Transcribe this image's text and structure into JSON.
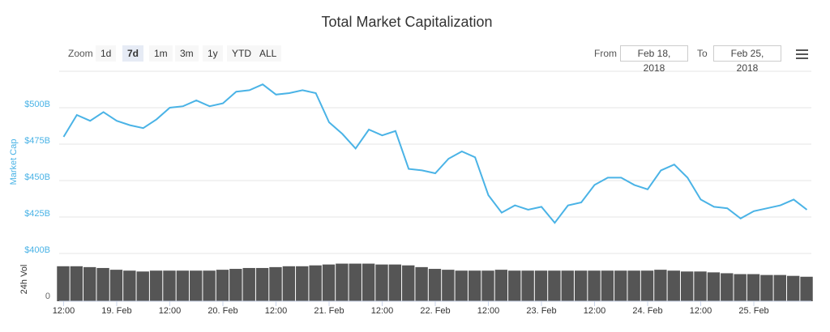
{
  "chart_data": {
    "type": "line",
    "title": "Total Market Capitalization",
    "ylabel": "Market Cap",
    "color": "#4ab3e6",
    "grid": true,
    "x": [
      12,
      15,
      18,
      21,
      24,
      27,
      30,
      33,
      36,
      39,
      42,
      45,
      48,
      51,
      54,
      57,
      60,
      63,
      66,
      69,
      72,
      75,
      78,
      81,
      84,
      87,
      90,
      93,
      96,
      99,
      102,
      105,
      108,
      111,
      114,
      117,
      120,
      123,
      126,
      129,
      132,
      135,
      138,
      141,
      144,
      147,
      150,
      153,
      156,
      159,
      162,
      165,
      168,
      171,
      174,
      177,
      180
    ],
    "values": [
      480,
      495,
      491,
      497,
      491,
      488,
      486,
      492,
      500,
      501,
      505,
      501,
      503,
      511,
      512,
      516,
      509,
      510,
      512,
      510,
      490,
      482,
      472,
      485,
      481,
      484,
      458,
      457,
      455,
      465,
      470,
      466,
      440,
      428,
      433,
      430,
      432,
      421,
      433,
      435,
      447,
      452,
      452,
      447,
      444,
      457,
      461,
      452,
      437,
      432,
      431,
      424,
      429,
      431,
      433,
      437,
      430
    ],
    "xlim": [
      11,
      181
    ],
    "xticks": [
      {
        "value": 12,
        "label": "12:00"
      },
      {
        "value": 24,
        "label": "19. Feb"
      },
      {
        "value": 36,
        "label": "12:00"
      },
      {
        "value": 48,
        "label": "20. Feb"
      },
      {
        "value": 60,
        "label": "12:00"
      },
      {
        "value": 72,
        "label": "21. Feb"
      },
      {
        "value": 84,
        "label": "12:00"
      },
      {
        "value": 96,
        "label": "22. Feb"
      },
      {
        "value": 108,
        "label": "12:00"
      },
      {
        "value": 120,
        "label": "23. Feb"
      },
      {
        "value": 132,
        "label": "12:00"
      },
      {
        "value": 144,
        "label": "24. Feb"
      },
      {
        "value": 156,
        "label": "12:00"
      },
      {
        "value": 168,
        "label": "25. Feb"
      }
    ],
    "ylim": [
      400,
      525
    ],
    "yticks": [
      {
        "value": 400,
        "label": "$400B"
      },
      {
        "value": 425,
        "label": "$425B"
      },
      {
        "value": 450,
        "label": "$450B"
      },
      {
        "value": 475,
        "label": "$475B"
      },
      {
        "value": 500,
        "label": "$500B"
      }
    ],
    "volume": {
      "type": "bar",
      "ylabel": "24h Vol",
      "color": "#555555",
      "values": [
        40,
        40,
        39,
        38,
        36,
        35,
        34,
        35,
        35,
        35,
        35,
        35,
        36,
        37,
        38,
        38,
        39,
        40,
        40,
        41,
        42,
        43,
        43,
        43,
        42,
        42,
        41,
        39,
        37,
        36,
        35,
        35,
        35,
        36,
        35,
        35,
        35,
        35,
        35,
        35,
        35,
        35,
        35,
        35,
        35,
        36,
        35,
        34,
        34,
        33,
        32,
        31,
        31,
        30,
        30,
        29,
        28
      ],
      "ylim": [
        0,
        50
      ],
      "yticks": [
        0
      ]
    }
  },
  "ui": {
    "zoom_label": "Zoom",
    "zoom_buttons": [
      "1d",
      "7d",
      "1m",
      "3m",
      "1y",
      "YTD",
      "ALL"
    ],
    "from_label": "From",
    "from_value": "Feb 18, 2018",
    "to_label": "To",
    "to_value": "Feb 25, 2018"
  }
}
